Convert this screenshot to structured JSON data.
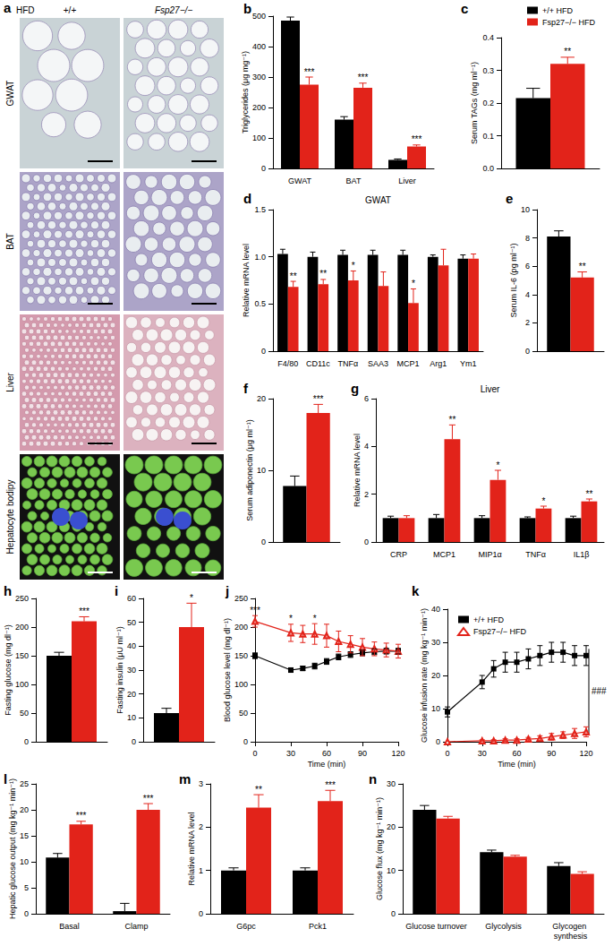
{
  "panel_a": {
    "panel": "a",
    "condition": "HFD",
    "columns": [
      "+/+",
      "Fsp27−/−"
    ],
    "rows": [
      "GWAT",
      "BAT",
      "Liver",
      "Hepatocyte bodipy"
    ]
  },
  "chart_data": [
    {
      "panel": "b",
      "type": "bar",
      "y_label": "Triglycerides (μg mg⁻¹)",
      "categories": [
        "GWAT",
        "BAT",
        "Liver"
      ],
      "ylim": [
        0,
        500
      ],
      "yticks": [
        0,
        100,
        200,
        300,
        400,
        500
      ],
      "series": [
        {
          "name": "+/+ HFD",
          "color": "#000000",
          "values": [
            485,
            160,
            28
          ],
          "errors": [
            12,
            10,
            3
          ]
        },
        {
          "name": "Fsp27−/− HFD",
          "color": "#e2231a",
          "values": [
            275,
            265,
            72
          ],
          "errors": [
            25,
            15,
            5
          ],
          "significance": [
            "***",
            "***",
            "***"
          ]
        }
      ]
    },
    {
      "panel": "c",
      "type": "bar",
      "y_label": "Serum TAGs (mg ml⁻¹)",
      "categories": [
        null
      ],
      "ylim": [
        0,
        0.4
      ],
      "yticks": [
        {
          "value": 0,
          "label": "0.0"
        },
        0.1,
        0.2,
        0.3,
        0.4
      ],
      "legend": "top-right",
      "series": [
        {
          "name": "+/+ HFD",
          "color": "#000000",
          "values": [
            0.215
          ],
          "errors": [
            0.03
          ]
        },
        {
          "name": "Fsp27−/− HFD",
          "color": "#e2231a",
          "values": [
            0.32
          ],
          "errors": [
            0.02
          ],
          "significance": [
            "**"
          ]
        }
      ]
    },
    {
      "panel": "d",
      "type": "bar",
      "title": "GWAT",
      "y_label": "Relative mRNA level",
      "categories": [
        "F4/80",
        "CD11c",
        "TNFα",
        "SAA3",
        "MCP1",
        "Arg1",
        "Ym1"
      ],
      "ylim": [
        0,
        1.5
      ],
      "yticks": [
        0,
        0.5,
        {
          "value": 1,
          "label": "1.0"
        },
        1.5
      ],
      "series": [
        {
          "name": "+/+ HFD",
          "color": "#000000",
          "values": [
            1.03,
            1.0,
            1.02,
            1.02,
            1.02,
            1.0,
            0.98
          ],
          "errors": [
            0.05,
            0.05,
            0.05,
            0.05,
            0.05,
            0.02,
            0.04
          ]
        },
        {
          "name": "Fsp27−/− HFD",
          "color": "#e2231a",
          "values": [
            0.68,
            0.71,
            0.75,
            0.69,
            0.51,
            0.91,
            0.98
          ],
          "errors": [
            0.06,
            0.05,
            0.1,
            0.15,
            0.15,
            0.17,
            0.05
          ],
          "significance": [
            "**",
            "**",
            "*",
            null,
            "*",
            null,
            null
          ]
        }
      ]
    },
    {
      "panel": "e",
      "type": "bar",
      "y_label": "Serum IL-6 (pg ml⁻¹)",
      "categories": [
        null
      ],
      "ylim": [
        0,
        10
      ],
      "yticks": [
        0,
        2,
        4,
        6,
        8,
        10
      ],
      "series": [
        {
          "name": "+/+ HFD",
          "color": "#000000",
          "values": [
            8.1
          ],
          "errors": [
            0.4
          ]
        },
        {
          "name": "Fsp27−/− HFD",
          "color": "#e2231a",
          "values": [
            5.2
          ],
          "errors": [
            0.4
          ],
          "significance": [
            "**"
          ]
        }
      ]
    },
    {
      "panel": "f",
      "type": "bar",
      "y_label": "Serum adiponectin (μg ml⁻¹)",
      "categories": [
        null
      ],
      "ylim": [
        0,
        20
      ],
      "yticks": [
        0,
        10,
        20
      ],
      "series": [
        {
          "name": "+/+ HFD",
          "color": "#000000",
          "values": [
            7.8
          ],
          "errors": [
            1.4
          ]
        },
        {
          "name": "Fsp27−/− HFD",
          "color": "#e2231a",
          "values": [
            18
          ],
          "errors": [
            1.2
          ],
          "significance": [
            "***"
          ]
        }
      ]
    },
    {
      "panel": "g",
      "type": "bar",
      "title": "Liver",
      "y_label": "Relative mRNA level",
      "categories": [
        "CRP",
        "MCP1",
        "MIP1α",
        "TNFα",
        "IL1β"
      ],
      "ylim": [
        0,
        6
      ],
      "yticks": [
        0,
        2,
        4,
        6
      ],
      "series": [
        {
          "name": "+/+ HFD",
          "color": "#000000",
          "values": [
            1,
            1,
            1,
            1,
            1
          ],
          "errors": [
            0.08,
            0.15,
            0.1,
            0.05,
            0.08
          ]
        },
        {
          "name": "Fsp27−/− HFD",
          "color": "#e2231a",
          "values": [
            1.0,
            4.3,
            2.6,
            1.4,
            1.7
          ],
          "errors": [
            0.1,
            0.6,
            0.4,
            0.1,
            0.1
          ],
          "significance": [
            null,
            "**",
            "*",
            "*",
            "**"
          ]
        }
      ]
    },
    {
      "panel": "h",
      "type": "bar",
      "y_label": "Fasting glucose (mg dl⁻¹)",
      "categories": [
        null
      ],
      "ylim": [
        0,
        250
      ],
      "yticks": [
        0,
        50,
        100,
        150,
        200,
        250
      ],
      "series": [
        {
          "name": "+/+ HFD",
          "color": "#000000",
          "values": [
            150
          ],
          "errors": [
            6
          ]
        },
        {
          "name": "Fsp27−/− HFD",
          "color": "#e2231a",
          "values": [
            210
          ],
          "errors": [
            8
          ],
          "significance": [
            "***"
          ]
        }
      ]
    },
    {
      "panel": "i",
      "type": "bar",
      "y_label": "Fasting insulin (μU ml⁻¹)",
      "categories": [
        null
      ],
      "ylim": [
        0,
        60
      ],
      "yticks": [
        0,
        10,
        20,
        30,
        40,
        50,
        60
      ],
      "series": [
        {
          "name": "+/+ HFD",
          "color": "#000000",
          "values": [
            12
          ],
          "errors": [
            2
          ]
        },
        {
          "name": "Fsp27−/− HFD",
          "color": "#e2231a",
          "values": [
            48
          ],
          "errors": [
            10
          ],
          "significance": [
            "*"
          ]
        }
      ]
    },
    {
      "panel": "j",
      "type": "line",
      "y_label": "Blood glucose level (mg dl⁻¹)",
      "x_label": "Time (min)",
      "x": [
        0,
        30,
        40,
        50,
        60,
        70,
        80,
        90,
        100,
        110,
        120
      ],
      "xlim": [
        0,
        120
      ],
      "xticks": [
        0,
        30,
        60,
        90,
        120
      ],
      "ylim": [
        0,
        250
      ],
      "yticks": [
        0,
        50,
        100,
        150,
        200,
        250
      ],
      "series": [
        {
          "name": "+/+ HFD",
          "color": "#000000",
          "marker": "square",
          "values": [
            150,
            125,
            128,
            132,
            140,
            148,
            152,
            155,
            157,
            158,
            158
          ],
          "errors": [
            5,
            4,
            4,
            5,
            5,
            5,
            5,
            5,
            5,
            5,
            5
          ]
        },
        {
          "name": "Fsp27−/− HFD",
          "color": "#e2231a",
          "marker": "open-triangle",
          "values": [
            210,
            190,
            188,
            188,
            185,
            175,
            170,
            165,
            162,
            160,
            158
          ],
          "errors": [
            10,
            15,
            15,
            18,
            20,
            18,
            15,
            15,
            12,
            12,
            12
          ],
          "significance": [
            "***",
            "*",
            null,
            "*",
            null,
            null,
            null,
            null,
            null,
            null,
            null
          ]
        }
      ]
    },
    {
      "panel": "k",
      "type": "line",
      "y_label": "Glucose infusion rate (mg kg⁻¹ min⁻¹)",
      "x_label": "Time (min)",
      "x": [
        0,
        30,
        40,
        50,
        60,
        70,
        80,
        90,
        100,
        110,
        120
      ],
      "xlim": [
        0,
        120
      ],
      "xticks": [
        0,
        30,
        60,
        90,
        120
      ],
      "ylim": [
        0,
        40
      ],
      "yticks": [
        0,
        10,
        20,
        30,
        40
      ],
      "legend": "top-left",
      "annotation": "###",
      "series": [
        {
          "name": "+/+ HFD",
          "color": "#000000",
          "marker": "square",
          "values": [
            9,
            18,
            22,
            24,
            24,
            25,
            26,
            27,
            27,
            26,
            26
          ],
          "errors": [
            1.5,
            2,
            2.5,
            3,
            3,
            3,
            3,
            3,
            3,
            3,
            3
          ]
        },
        {
          "name": "Fsp27−/− HFD",
          "color": "#e2231a",
          "marker": "open-triangle",
          "values": [
            0,
            0.3,
            0.3,
            0.5,
            0.5,
            0.8,
            1,
            1.5,
            2,
            2.5,
            3
          ],
          "errors": [
            0,
            0.3,
            0.3,
            0.4,
            0.4,
            0.5,
            0.8,
            1,
            1,
            1.5,
            1.5
          ]
        }
      ]
    },
    {
      "panel": "l",
      "type": "bar",
      "y_label": "Hepatic glucose output (mg kg⁻¹ min⁻¹)",
      "categories": [
        "Basal",
        "Clamp"
      ],
      "ylim": [
        0,
        25
      ],
      "yticks": [
        0,
        5,
        10,
        15,
        20,
        25
      ],
      "series": [
        {
          "name": "+/+ HFD",
          "color": "#000000",
          "values": [
            10.8,
            0.5
          ],
          "errors": [
            0.8,
            1.5
          ]
        },
        {
          "name": "Fsp27−/− HFD",
          "color": "#e2231a",
          "values": [
            17.2,
            20
          ],
          "errors": [
            0.6,
            1.2
          ],
          "significance": [
            "***",
            "***"
          ]
        }
      ]
    },
    {
      "panel": "m",
      "type": "bar",
      "y_label": "Relative mRNA level",
      "categories": [
        "G6pc",
        "Pck1"
      ],
      "ylim": [
        0,
        3
      ],
      "yticks": [
        0,
        1,
        2,
        3
      ],
      "series": [
        {
          "name": "+/+ HFD",
          "color": "#000000",
          "values": [
            1,
            1
          ],
          "errors": [
            0.06,
            0.06
          ]
        },
        {
          "name": "Fsp27−/− HFD",
          "color": "#e2231a",
          "values": [
            2.45,
            2.6
          ],
          "errors": [
            0.3,
            0.25
          ],
          "significance": [
            "**",
            "***"
          ]
        }
      ]
    },
    {
      "panel": "n",
      "type": "bar",
      "y_label": "Glucose flux (mg kg⁻¹ min⁻¹)",
      "categories": [
        "Glucose turnover",
        "Glycolysis",
        "Glycogen synthesis"
      ],
      "ylim": [
        0,
        30
      ],
      "yticks": [
        0,
        10,
        20,
        30
      ],
      "series": [
        {
          "name": "+/+ HFD",
          "color": "#000000",
          "values": [
            24,
            14.2,
            11
          ],
          "errors": [
            1,
            0.5,
            0.8
          ]
        },
        {
          "name": "Fsp27−/− HFD",
          "color": "#e2231a",
          "values": [
            22,
            13.2,
            9.2
          ],
          "errors": [
            0.5,
            0.3,
            0.5
          ]
        }
      ]
    }
  ]
}
